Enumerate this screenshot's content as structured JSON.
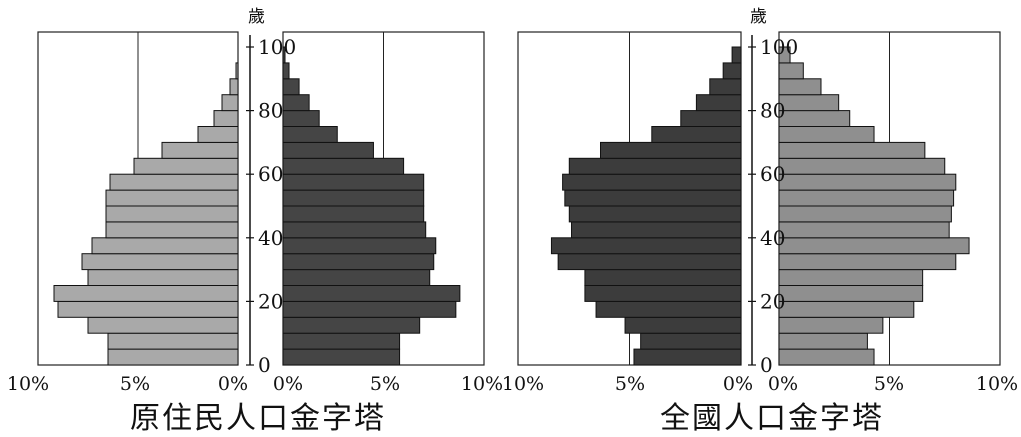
{
  "charts": [
    {
      "title": "原住民人口金字塔",
      "age_unit": "歲",
      "age_ticks": [
        "0",
        "20",
        "40",
        "60",
        "80",
        "100"
      ],
      "left_ticks": [
        "10%",
        "5%",
        "0%"
      ],
      "right_ticks": [
        "0%",
        "5%",
        "10%"
      ]
    },
    {
      "title": "全國人口金字塔",
      "age_unit": "歲",
      "age_ticks": [
        "0",
        "20",
        "40",
        "60",
        "80",
        "100"
      ],
      "left_ticks": [
        "10%",
        "5%",
        "0%"
      ],
      "right_ticks": [
        "0%",
        "5%",
        "10%"
      ]
    }
  ],
  "chart_data": [
    {
      "type": "bar",
      "title": "原住民人口金字塔",
      "categories": [
        "0-4",
        "5-9",
        "10-14",
        "15-19",
        "20-24",
        "25-29",
        "30-34",
        "35-39",
        "40-44",
        "45-49",
        "50-54",
        "55-59",
        "60-64",
        "65-69",
        "70-74",
        "75-79",
        "80-84",
        "85-89",
        "90-94",
        "95-99"
      ],
      "series": [
        {
          "values": [
            6.5,
            6.5,
            7.5,
            9.0,
            9.2,
            7.5,
            7.8,
            7.3,
            6.6,
            6.6,
            6.6,
            6.4,
            5.2,
            3.8,
            2.0,
            1.2,
            0.8,
            0.4,
            0.1,
            0.0
          ],
          "color": "#a9a9a9"
        },
        {
          "values": [
            5.8,
            5.8,
            6.8,
            8.6,
            8.8,
            7.3,
            7.5,
            7.6,
            7.1,
            7.0,
            7.0,
            7.0,
            6.0,
            4.5,
            2.7,
            1.8,
            1.3,
            0.8,
            0.3,
            0.1
          ],
          "color": "#454545"
        }
      ],
      "xlim": [
        0,
        10
      ],
      "ylim": [
        0,
        100
      ]
    },
    {
      "type": "bar",
      "title": "全國人口金字塔",
      "categories": [
        "0-4",
        "5-9",
        "10-14",
        "15-19",
        "20-24",
        "25-29",
        "30-34",
        "35-39",
        "40-44",
        "45-49",
        "50-54",
        "55-59",
        "60-64",
        "65-69",
        "70-74",
        "75-79",
        "80-84",
        "85-89",
        "90-94",
        "95-99"
      ],
      "series": [
        {
          "values": [
            4.8,
            4.5,
            5.2,
            6.5,
            7.0,
            7.0,
            8.2,
            8.5,
            7.6,
            7.7,
            7.9,
            8.0,
            7.7,
            6.3,
            4.0,
            2.7,
            2.0,
            1.4,
            0.8,
            0.4
          ],
          "color": "#3c3c3c"
        },
        {
          "values": [
            4.3,
            4.0,
            4.7,
            6.1,
            6.5,
            6.5,
            8.0,
            8.6,
            7.7,
            7.8,
            7.9,
            8.0,
            7.5,
            6.6,
            4.3,
            3.2,
            2.7,
            1.9,
            1.1,
            0.5
          ],
          "color": "#8f8f8f"
        }
      ],
      "xlim": [
        0,
        10
      ],
      "ylim": [
        0,
        100
      ]
    }
  ]
}
